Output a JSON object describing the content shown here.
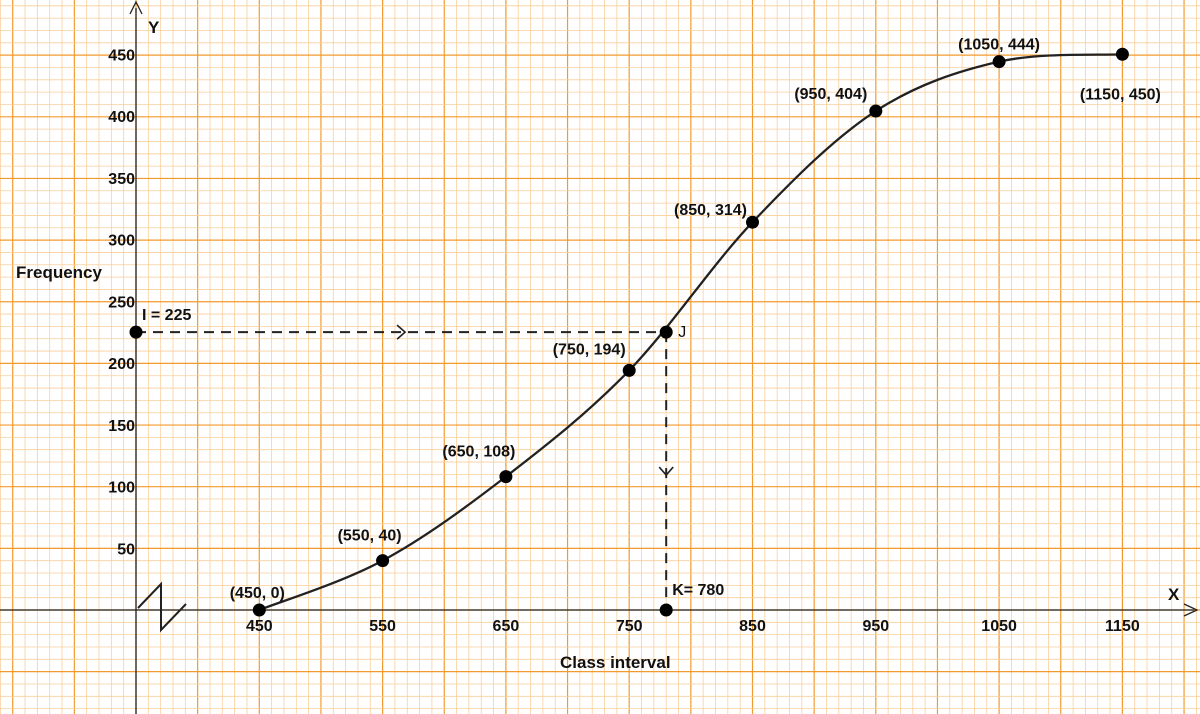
{
  "chart_data": {
    "type": "line",
    "xlabel": "Class interval",
    "ylabel": "Frequency",
    "x_axis_name": "X",
    "y_axis_name": "Y",
    "x_ticks": [
      450,
      550,
      650,
      750,
      850,
      950,
      1050,
      1150
    ],
    "y_ticks": [
      50,
      100,
      150,
      200,
      250,
      300,
      350,
      400,
      450
    ],
    "series": [
      {
        "points": [
          {
            "x": 450,
            "y": 0,
            "label": "(450, 0)"
          },
          {
            "x": 550,
            "y": 40,
            "label": "(550, 40)"
          },
          {
            "x": 650,
            "y": 108,
            "label": "(650, 108)"
          },
          {
            "x": 750,
            "y": 194,
            "label": "(750, 194)"
          },
          {
            "x": 850,
            "y": 314,
            "label": "(850, 314)"
          },
          {
            "x": 950,
            "y": 404,
            "label": "(950, 404)"
          },
          {
            "x": 1050,
            "y": 444,
            "label": "(1050, 444)"
          },
          {
            "x": 1150,
            "y": 450,
            "label": "(1150, 450)"
          }
        ]
      }
    ],
    "annotations": {
      "I": {
        "y": 225,
        "label": "I = 225"
      },
      "J": {
        "x": 780,
        "y": 225,
        "label": "J"
      },
      "K": {
        "x": 780,
        "y": 0,
        "label": "K= 780"
      }
    },
    "axis_break": true,
    "grid": true,
    "colors": {
      "grid_major": "#f39a2e",
      "grid_minor": "#f9cf9c",
      "line": "#222222",
      "axis": "#222222"
    }
  }
}
